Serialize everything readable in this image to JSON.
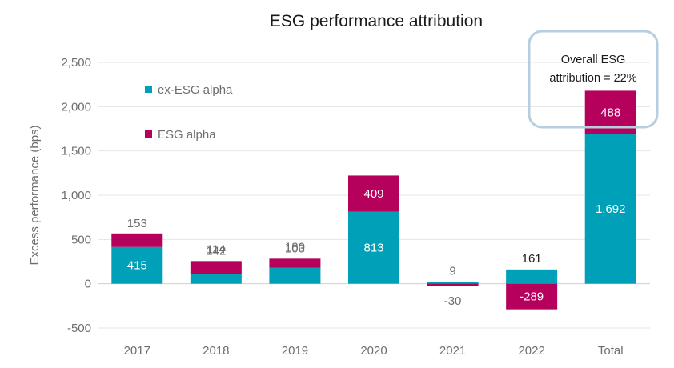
{
  "chart_data": {
    "type": "bar",
    "stacked": true,
    "title": "ESG performance attribution",
    "ylabel": "Excess performance (bps)",
    "xlabel": "",
    "ylim": [
      -500,
      2500
    ],
    "yticks": [
      -500,
      0,
      500,
      1000,
      1500,
      2000,
      2500
    ],
    "ytick_labels": [
      "-500",
      "0",
      "500",
      "1,000",
      "1,500",
      "2,000",
      "2,500"
    ],
    "categories": [
      "2017",
      "2018",
      "2019",
      "2020",
      "2021",
      "2022",
      "Total"
    ],
    "series": [
      {
        "name": "ex-ESG alpha",
        "color": "#00a0b8",
        "values": [
          415,
          114,
          180,
          813,
          9,
          161,
          1692
        ],
        "labels": [
          "415",
          "114",
          "180",
          "813",
          "9",
          "161",
          "1,692"
        ]
      },
      {
        "name": "ESG alpha",
        "color": "#b5005c",
        "values": [
          153,
          142,
          103,
          409,
          -30,
          -289,
          488
        ],
        "labels": [
          "153",
          "142",
          "103",
          "409",
          "-30",
          "-289",
          "488"
        ]
      }
    ],
    "legend_position": "top-left",
    "grid": true,
    "annotation": {
      "line1": "Overall ESG",
      "line2": "attribution = 22%"
    }
  }
}
